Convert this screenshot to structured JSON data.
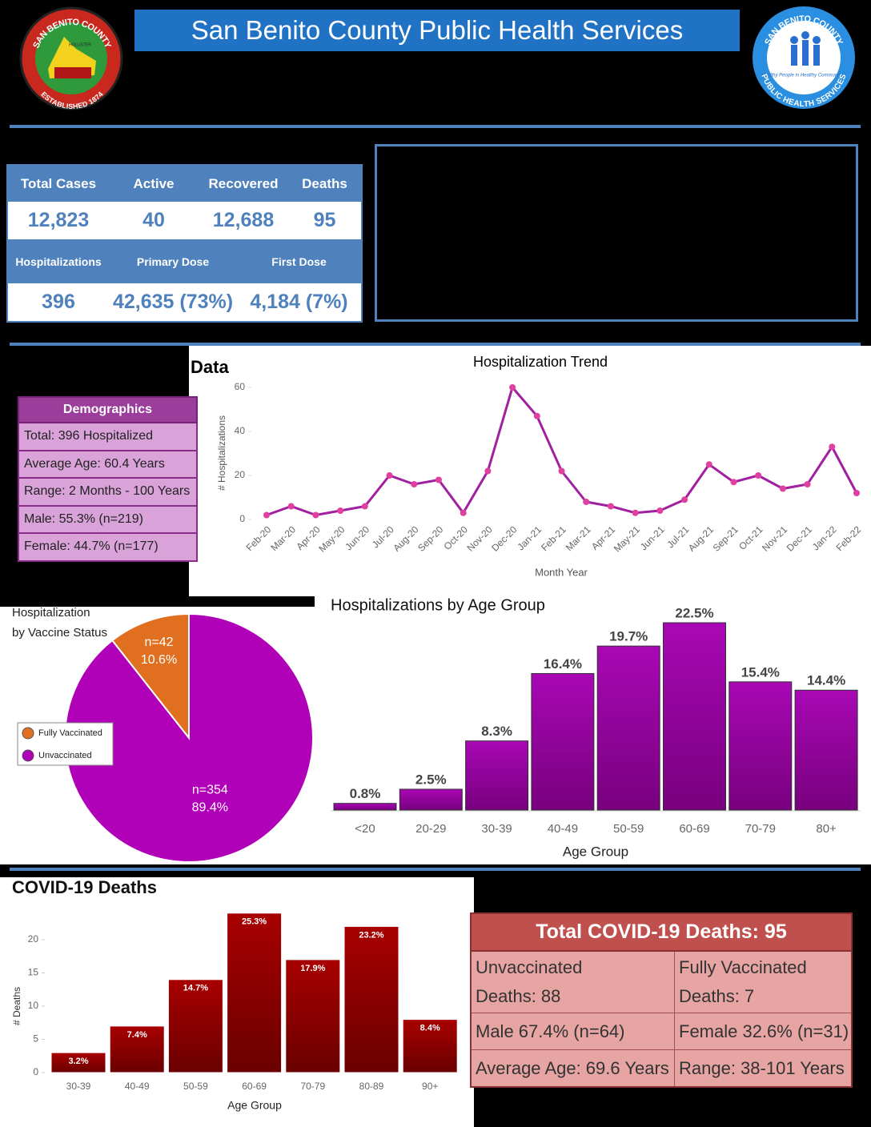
{
  "header": {
    "title": "San Benito County Public Health Services",
    "left_logo": {
      "top_text": "SAN BENITO COUNTY",
      "bottom_text": "ESTABLISHED 1874",
      "town": "HOLLISTER"
    },
    "right_logo": {
      "top_text": "SAN BENITO COUNTY",
      "bottom_text": "PUBLIC HEALTH SERVICES",
      "motto": "Healthy People in Healthy Communities"
    }
  },
  "summary": {
    "rows": [
      [
        "Total Cases",
        "Active",
        "Recovered",
        "Deaths"
      ],
      [
        "12,823",
        "40",
        "12,688",
        "95"
      ],
      [
        "Hospitalizations",
        "Primary Dose",
        "First Dose"
      ],
      [
        "396",
        "42,635 (73%)",
        "4,184 (7%)"
      ]
    ]
  },
  "section_title": "Data",
  "demographics": {
    "title": "Demographics",
    "rows": [
      "Total: 396 Hospitalized",
      "Average Age: 60.4 Years",
      "Range: 2 Months - 100 Years",
      "Male: 55.3% (n=219)",
      "Female: 44.7% (n=177)"
    ]
  },
  "chart_data": [
    {
      "type": "line",
      "title": "Hospitalization Trend",
      "xlabel": "Month Year",
      "ylabel": "# Hospitalizations",
      "categories": [
        "Feb-20",
        "Mar-20",
        "Apr-20",
        "May-20",
        "Jun-20",
        "Jul-20",
        "Aug-20",
        "Sep-20",
        "Oct-20",
        "Nov-20",
        "Dec-20",
        "Jan-21",
        "Feb-21",
        "Mar-21",
        "Apr-21",
        "May-21",
        "Jun-21",
        "Jul-21",
        "Aug-21",
        "Sep-21",
        "Oct-21",
        "Nov-21",
        "Dec-21",
        "Jan-22",
        "Feb-22"
      ],
      "values": [
        2,
        6,
        2,
        4,
        6,
        20,
        16,
        18,
        3,
        22,
        60,
        47,
        22,
        8,
        6,
        3,
        4,
        9,
        25,
        17,
        20,
        14,
        16,
        33,
        12
      ],
      "color": "#a020a0",
      "marker_color": "#e040a0",
      "ylim": [
        0,
        60
      ],
      "yticks": [
        0,
        20,
        40,
        60
      ]
    },
    {
      "type": "pie",
      "title": [
        "Hospitalization",
        "by Vaccine Status"
      ],
      "labels": [
        "Fully Vaccinated",
        "Unvaccinated"
      ],
      "values": [
        10.6,
        89.4
      ],
      "value_labels": [
        "10.6%",
        "89.4%"
      ],
      "counts": [
        42,
        354
      ],
      "count_labels": [
        "n=42",
        "n=354"
      ],
      "colors": [
        "#e07020",
        "#b000b8"
      ]
    },
    {
      "type": "bar",
      "title": "Hospitalizations by Age Group",
      "xlabel": "Age Group",
      "categories": [
        "<20",
        "20-29",
        "30-39",
        "40-49",
        "50-59",
        "60-69",
        "70-79",
        "80+"
      ],
      "values": [
        0.8,
        2.5,
        8.3,
        16.4,
        19.7,
        22.5,
        15.4,
        14.4
      ],
      "value_labels": [
        "0.8%",
        "2.5%",
        "8.3%",
        "16.4%",
        "19.7%",
        "22.5%",
        "15.4%",
        "14.4%"
      ],
      "color": "#a808b4"
    },
    {
      "type": "bar",
      "title": "COVID-19 Deaths",
      "xlabel": "Age Group",
      "ylabel": "# Deaths",
      "categories": [
        "30-39",
        "40-49",
        "50-59",
        "60-69",
        "70-79",
        "80-89",
        "90+"
      ],
      "values": [
        3,
        7,
        14,
        24,
        17,
        22,
        8
      ],
      "value_labels": [
        "3.2%",
        "7.4%",
        "14.7%",
        "25.3%",
        "17.9%",
        "23.2%",
        "8.4%"
      ],
      "color": "#a80000",
      "ylim": [
        0,
        25
      ],
      "yticks": [
        0,
        5,
        10,
        15,
        20
      ]
    }
  ],
  "deaths_table": {
    "title": "Total COVID-19 Deaths: 95",
    "rows": [
      [
        [
          "Unvaccinated",
          "Deaths: 88"
        ],
        [
          "Fully Vaccinated",
          "Deaths: 7"
        ]
      ],
      [
        [
          "Male 67.4% (n=64)"
        ],
        [
          "Female 32.6% (n=31)"
        ]
      ],
      [
        [
          "Average Age: 69.6 Years"
        ],
        [
          "Range: 38-101 Years"
        ]
      ]
    ]
  }
}
